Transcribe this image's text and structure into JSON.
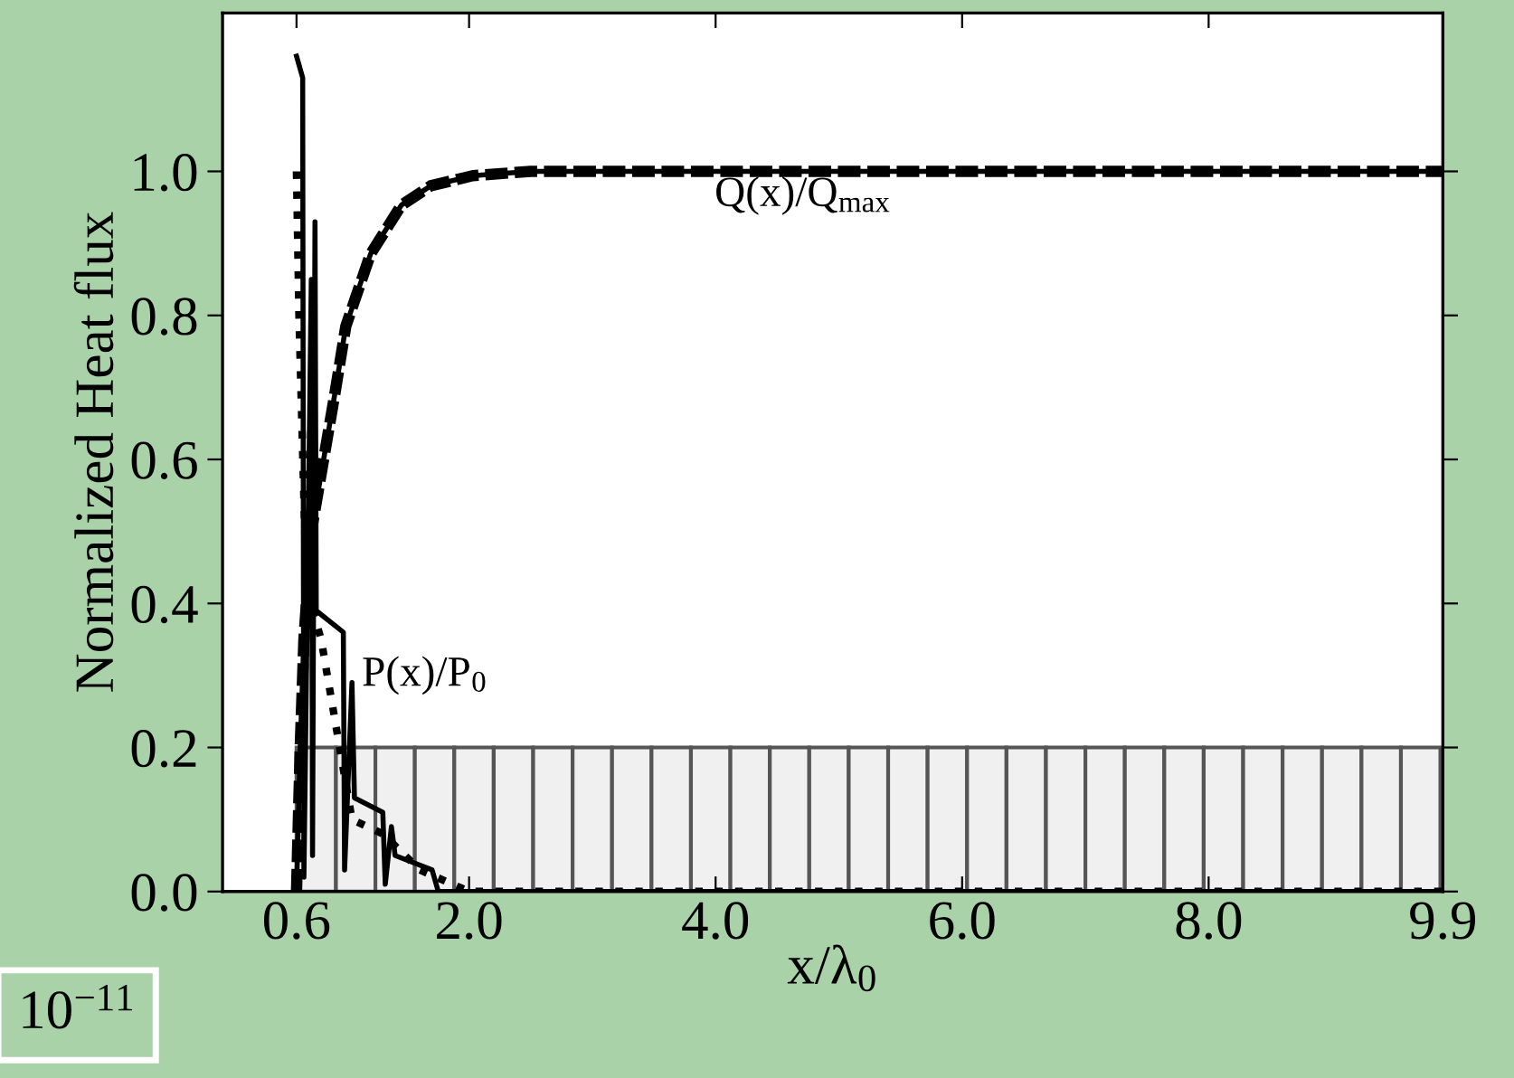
{
  "chart_data": {
    "type": "line",
    "xlabel": "x/λ$_{0}$",
    "ylabel": "Normalized Heat flux",
    "xlim": [
      0,
      9.9
    ],
    "ylim": [
      0,
      1.22
    ],
    "xticks": [
      0.6,
      {
        "value": 2,
        "label": "2.0"
      },
      {
        "value": 4,
        "label": "4.0"
      },
      {
        "value": 6,
        "label": "6.0"
      },
      {
        "value": 8,
        "label": "8.0"
      },
      9.9
    ],
    "yticks": [
      {
        "value": 0,
        "label": "0.0"
      },
      0.2,
      0.4,
      0.6,
      0.8,
      {
        "value": 1,
        "label": "1.0"
      }
    ],
    "grid": false,
    "legend": false,
    "series": [
      {
        "type": "bar",
        "color": "#f0f0f0",
        "x": [
          0.76,
          1.08,
          1.4,
          1.72,
          2.04,
          2.36,
          2.68,
          3.0,
          3.32,
          3.64,
          3.96,
          4.28,
          4.6,
          4.92,
          5.24,
          5.56,
          5.88,
          6.2,
          6.52,
          6.84,
          7.16,
          7.48,
          7.8,
          8.12,
          8.44,
          8.76,
          9.08,
          9.4,
          9.72
        ],
        "values": [
          0.2,
          0.2,
          0.2,
          0.2,
          0.2,
          0.2,
          0.2,
          0.2,
          0.2,
          0.2,
          0.2,
          0.2,
          0.2,
          0.2,
          0.2,
          0.2,
          0.2,
          0.2,
          0.2,
          0.2,
          0.2,
          0.2,
          0.2,
          0.2,
          0.2,
          0.2,
          0.2,
          0.2,
          0.2
        ]
      },
      {
        "color": "#000000",
        "line_style": "solid",
        "x": [
          0.6,
          0.63,
          0.66,
          0.72,
          0.91,
          1.0,
          1.2,
          1.45,
          1.69,
          2.03,
          2.5,
          9.9
        ],
        "values": [
          0,
          0.2,
          0.35,
          0.5,
          0.69,
          0.785,
          0.885,
          0.953,
          0.98,
          0.994,
          1.0,
          1.0
        ]
      },
      {
        "color": "#000000",
        "line_style": "dashed",
        "x": [
          0.6,
          0.63,
          0.66,
          0.72,
          0.91,
          1.0,
          1.2,
          1.45,
          1.69,
          2.03,
          2.5,
          9.9
        ],
        "values": [
          0,
          0.2,
          0.35,
          0.5,
          0.69,
          0.785,
          0.885,
          0.953,
          0.98,
          0.994,
          1.0,
          1.0
        ]
      },
      {
        "color": "#000000",
        "line_style": "solid",
        "x": [
          0.6,
          0.65,
          0.66,
          0.72,
          0.73,
          0.75,
          0.76,
          0.98,
          0.99,
          1.05,
          1.07,
          1.3,
          1.32,
          1.37,
          1.4,
          1.7,
          1.75,
          2.2,
          9.9
        ],
        "values": [
          1.16,
          1.13,
          0.02,
          0.85,
          0.05,
          0.93,
          0.39,
          0.36,
          0.03,
          0.29,
          0.13,
          0.11,
          0.01,
          0.09,
          0.05,
          0.03,
          0.0,
          0.0,
          0.0
        ]
      },
      {
        "color": "#000000",
        "line_style": "dotted",
        "x": [
          0.6,
          0.62,
          0.68,
          0.8,
          0.95,
          1.05,
          1.3,
          1.6,
          2.0,
          9.9
        ],
        "values": [
          1.0,
          0.8,
          0.42,
          0.35,
          0.2,
          0.1,
          0.08,
          0.03,
          0.0,
          0.0
        ]
      }
    ],
    "annotations": [
      "Q(x)/Q$_{max}$",
      "P(x)/P$_{0}$",
      "10$^{−11}$"
    ]
  }
}
